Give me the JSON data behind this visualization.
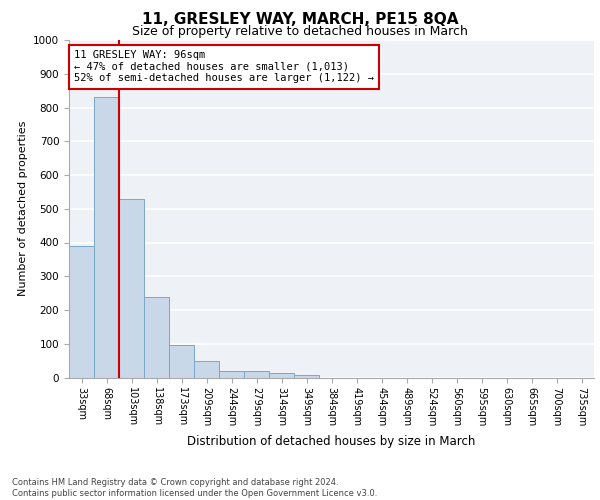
{
  "title": "11, GRESLEY WAY, MARCH, PE15 8QA",
  "subtitle": "Size of property relative to detached houses in March",
  "xlabel": "Distribution of detached houses by size in March",
  "ylabel": "Number of detached properties",
  "categories": [
    "33sqm",
    "68sqm",
    "103sqm",
    "138sqm",
    "173sqm",
    "209sqm",
    "244sqm",
    "279sqm",
    "314sqm",
    "349sqm",
    "384sqm",
    "419sqm",
    "454sqm",
    "489sqm",
    "524sqm",
    "560sqm",
    "595sqm",
    "630sqm",
    "665sqm",
    "700sqm",
    "735sqm"
  ],
  "values": [
    390,
    830,
    530,
    240,
    95,
    50,
    20,
    20,
    13,
    8,
    0,
    0,
    0,
    0,
    0,
    0,
    0,
    0,
    0,
    0,
    0
  ],
  "bar_color": "#c8d8e8",
  "bar_edge_color": "#7aa8c8",
  "ylim": [
    0,
    1000
  ],
  "yticks": [
    0,
    100,
    200,
    300,
    400,
    500,
    600,
    700,
    800,
    900,
    1000
  ],
  "vline_color": "#cc0000",
  "vline_pos": 1.5,
  "annotation_text": "11 GRESLEY WAY: 96sqm\n← 47% of detached houses are smaller (1,013)\n52% of semi-detached houses are larger (1,122) →",
  "annotation_box_facecolor": "#ffffff",
  "annotation_box_edgecolor": "#cc0000",
  "footer": "Contains HM Land Registry data © Crown copyright and database right 2024.\nContains public sector information licensed under the Open Government Licence v3.0.",
  "background_color": "#eef2f7",
  "grid_color": "#ffffff",
  "title_fontsize": 11,
  "subtitle_fontsize": 9,
  "ylabel_fontsize": 8,
  "xlabel_fontsize": 8.5,
  "tick_fontsize": 7,
  "annotation_fontsize": 7.5,
  "footer_fontsize": 6
}
